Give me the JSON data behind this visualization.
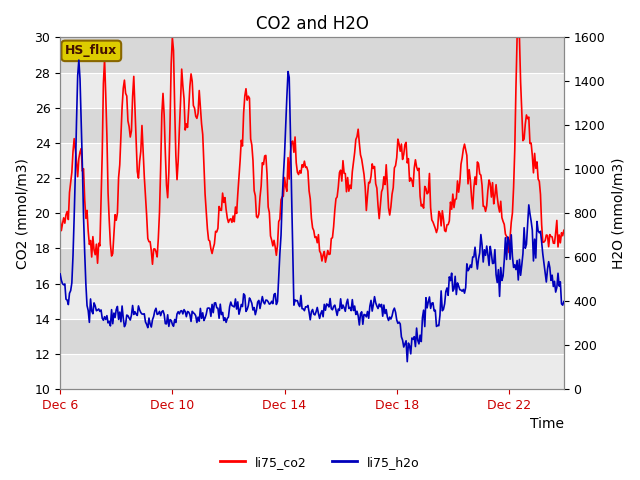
{
  "title": "CO2 and H2O",
  "ylabel_left": "CO2 (mmol/m3)",
  "ylabel_right": "H2O (mmol/m3)",
  "xlabel": "Time",
  "ylim_left": [
    10,
    30
  ],
  "ylim_right": [
    0,
    1600
  ],
  "yticks_left": [
    10,
    12,
    14,
    16,
    18,
    20,
    22,
    24,
    26,
    28,
    30
  ],
  "yticks_right": [
    0,
    200,
    400,
    600,
    800,
    1000,
    1200,
    1400,
    1600
  ],
  "xtick_labels": [
    "Dec 6",
    "Dec 10",
    "Dec 14",
    "Dec 18",
    "Dec 22"
  ],
  "xtick_positions": [
    0,
    96,
    192,
    288,
    384
  ],
  "total_points": 432,
  "legend_labels": [
    "li75_co2",
    "li75_h2o"
  ],
  "legend_colors": [
    "#ff0000",
    "#0000bb"
  ],
  "annotation_text": "HS_flux",
  "annotation_bg": "#ddcc00",
  "annotation_border": "#886600",
  "plot_bg_dark": "#d8d8d8",
  "plot_bg_light": "#ebebeb",
  "title_fontsize": 12,
  "axis_label_fontsize": 10,
  "tick_fontsize": 9,
  "co2_linewidth": 1.2,
  "h2o_linewidth": 1.2
}
